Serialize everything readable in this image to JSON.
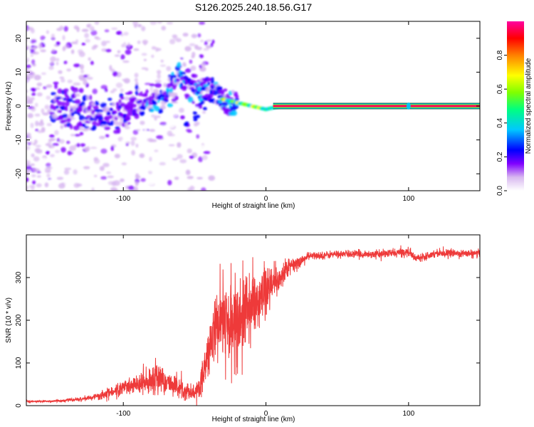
{
  "figure": {
    "title": "S126.2025.240.18.56.G17"
  },
  "chart_data": [
    {
      "type": "heatmap",
      "title": "",
      "xlabel": "Height of straight line (km)",
      "ylabel": "Frequency (Hz)",
      "xlim": [
        -168,
        150
      ],
      "ylim": [
        -25,
        25
      ],
      "x_ticks": [
        -100,
        0,
        100
      ],
      "x_tick_labels": [
        "-100",
        "0",
        "100"
      ],
      "y_ticks": [
        -20,
        -10,
        0,
        10,
        20
      ],
      "y_tick_labels": [
        "-20",
        "-10",
        "0",
        "10",
        "20"
      ],
      "colorbar": {
        "label": "Normalized spectral amplitude",
        "range": [
          0,
          1
        ],
        "ticks": [
          0.0,
          0.2,
          0.4,
          0.6,
          0.8
        ],
        "tick_labels": [
          "0.0",
          "0.2",
          "0.4",
          "0.6",
          "0.8"
        ],
        "colormap": [
          "#ffffff",
          "#d8b8f0",
          "#8000ff",
          "#0000ff",
          "#00c8ff",
          "#00ff80",
          "#80ff00",
          "#ffff00",
          "#ff8000",
          "#ff0000",
          "#ff00a0"
        ]
      },
      "ridge": {
        "description_points": [
          {
            "x": -150,
            "y": 1
          },
          {
            "x": -130,
            "y": -2
          },
          {
            "x": -115,
            "y": -3
          },
          {
            "x": -100,
            "y": -2
          },
          {
            "x": -90,
            "y": 0
          },
          {
            "x": -80,
            "y": 2
          },
          {
            "x": -70,
            "y": 4
          },
          {
            "x": -60,
            "y": 9
          },
          {
            "x": -50,
            "y": 5
          },
          {
            "x": -40,
            "y": 5
          },
          {
            "x": -30,
            "y": 2
          },
          {
            "x": -20,
            "y": 1
          },
          {
            "x": -10,
            "y": 0
          },
          {
            "x": 0,
            "y": -1
          },
          {
            "x": 10,
            "y": 0
          },
          {
            "x": 20,
            "y": 0
          },
          {
            "x": 150,
            "y": 0
          }
        ],
        "branch": [
          {
            "x": -55,
            "y": -6
          },
          {
            "x": -50,
            "y": -3
          },
          {
            "x": -45,
            "y": 0
          },
          {
            "x": -40,
            "y": 2
          }
        ],
        "outlier": [
          {
            "x": -38,
            "y": 18
          },
          {
            "x": -37,
            "y": 19
          }
        ]
      }
    },
    {
      "type": "line",
      "title": "",
      "xlabel": "Height of straight line (km)",
      "ylabel": "SNR (10 * v/v)",
      "xlim": [
        -168,
        150
      ],
      "ylim": [
        0,
        400
      ],
      "x_ticks": [
        -100,
        0,
        100
      ],
      "x_tick_labels": [
        "-100",
        "0",
        "100"
      ],
      "y_ticks": [
        0,
        100,
        200,
        300
      ],
      "y_tick_labels": [
        "0",
        "100",
        "200",
        "300"
      ],
      "line_color": "#ee3a3a",
      "series": [
        {
          "name": "SNR",
          "x": [
            -168,
            -150,
            -130,
            -120,
            -110,
            -100,
            -90,
            -80,
            -75,
            -70,
            -60,
            -50,
            -45,
            -40,
            -35,
            -30,
            -25,
            -20,
            -15,
            -10,
            -5,
            0,
            5,
            10,
            15,
            20,
            25,
            30,
            40,
            50,
            60,
            80,
            100,
            105,
            120,
            150
          ],
          "y": [
            10,
            10,
            15,
            20,
            30,
            40,
            50,
            60,
            65,
            55,
            40,
            30,
            60,
            120,
            180,
            200,
            180,
            200,
            220,
            230,
            240,
            260,
            280,
            300,
            320,
            330,
            340,
            350,
            352,
            355,
            355,
            355,
            360,
            345,
            358,
            355
          ],
          "noise": [
            3,
            3,
            5,
            8,
            15,
            20,
            25,
            35,
            45,
            30,
            25,
            20,
            40,
            60,
            90,
            100,
            110,
            110,
            110,
            100,
            80,
            60,
            50,
            40,
            30,
            20,
            15,
            10,
            10,
            10,
            10,
            10,
            12,
            10,
            10,
            10
          ]
        }
      ]
    }
  ]
}
